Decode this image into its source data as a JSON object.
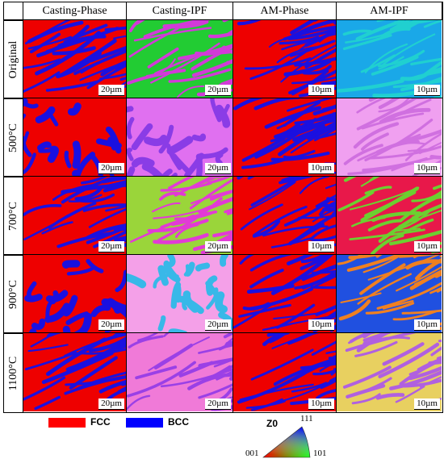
{
  "figure": {
    "column_headers": [
      "Casting-Phase",
      "Casting-IPF",
      "AM-Phase",
      "AM-IPF"
    ],
    "rows": [
      {
        "label": "Original",
        "scalebars": [
          "20µm",
          "20µm",
          "10µm",
          "10µm"
        ]
      },
      {
        "label": "500°C",
        "scalebars": [
          "20µm",
          "20µm",
          "10µm",
          "10µm"
        ]
      },
      {
        "label": "700°C",
        "scalebars": [
          "20µm",
          "20µm",
          "10µm",
          "10µm"
        ]
      },
      {
        "label": "900°C",
        "scalebars": [
          "20µm",
          "20µm",
          "10µm",
          "10µm"
        ]
      },
      {
        "label": "1100°C",
        "scalebars": [
          "20µm",
          "20µm",
          "10µm",
          "10µm"
        ]
      }
    ]
  },
  "phase_legend": {
    "items": [
      {
        "label": "FCC",
        "color": "#ff0000"
      },
      {
        "label": "BCC",
        "color": "#0000ff"
      }
    ]
  },
  "ipf_key": {
    "axis_label": "Z0",
    "corner_001": "001",
    "corner_101": "101",
    "corner_111": "111",
    "colors": {
      "001": "#ff0000",
      "101": "#00ff00",
      "111": "#0000ff"
    }
  },
  "palettes": {
    "phase": [
      "#ee0000",
      "#1a10e0"
    ],
    "casting_ipf": [
      [
        "#22cc33",
        "#d23ad8"
      ],
      [
        "#e070f0",
        "#8a3ce6"
      ],
      [
        "#9ad53a",
        "#e23ad6"
      ],
      [
        "#f4a0e8",
        "#38b8e8"
      ],
      [
        "#f07ad8",
        "#9a40e6"
      ]
    ],
    "am_ipf": [
      [
        "#1aa8e8",
        "#20d0d0"
      ],
      [
        "#f0a0f0",
        "#d070e0"
      ],
      [
        "#e8184a",
        "#6cd030"
      ],
      [
        "#2050e0",
        "#f08020"
      ],
      [
        "#e8d060",
        "#b060e0"
      ]
    ]
  }
}
